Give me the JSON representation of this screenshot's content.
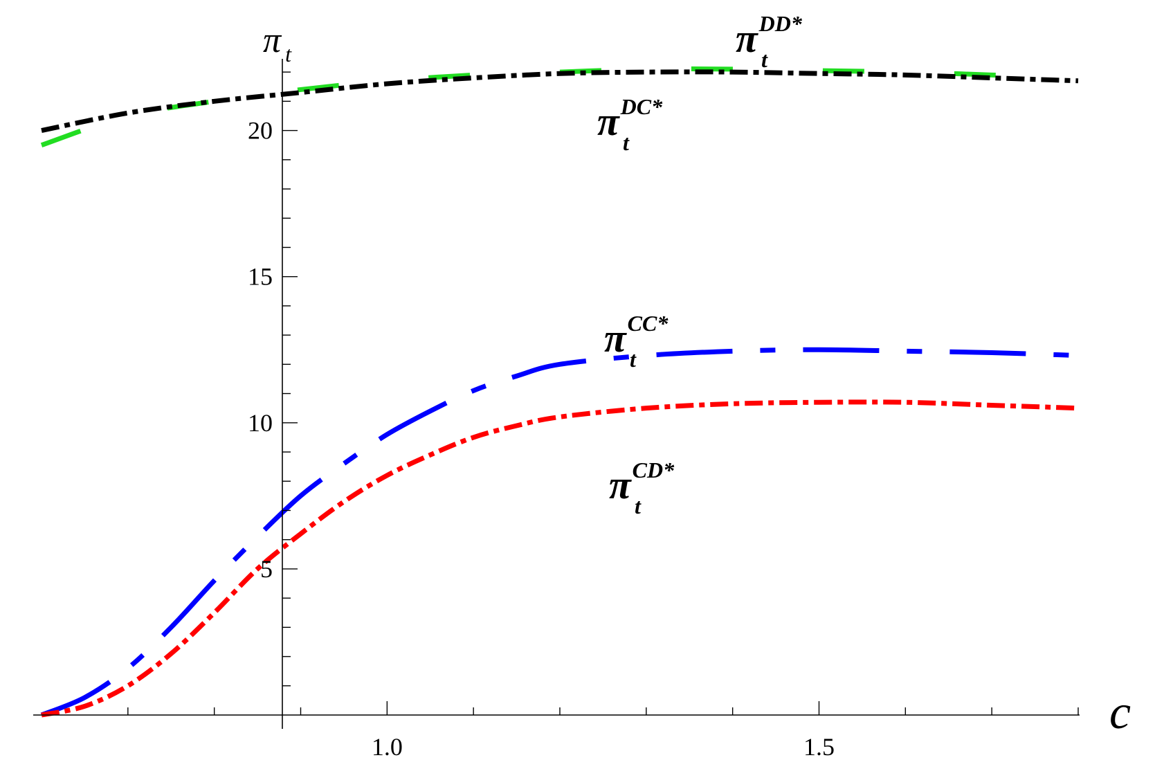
{
  "chart_data": {
    "type": "line",
    "xlabel": "c",
    "ylabel": "π",
    "ylabel_sub": "t",
    "xlim": [
      0.6,
      1.8
    ],
    "ylim": [
      0,
      22.5
    ],
    "x_ticks": [
      1.0,
      1.5
    ],
    "x_tick_labels": [
      "1.0",
      "1.5"
    ],
    "y_ticks": [
      5,
      10,
      15,
      20
    ],
    "y_tick_labels": [
      "5",
      "10",
      "15",
      "20"
    ],
    "grid": false,
    "series": [
      {
        "name": "DD*",
        "color": "#22dd22",
        "style": "long-dash",
        "x": [
          0.6,
          0.7,
          0.8,
          0.9,
          1.0,
          1.1,
          1.2,
          1.3,
          1.4,
          1.5,
          1.6,
          1.7,
          1.8
        ],
        "y": [
          19.5,
          20.5,
          21.0,
          21.4,
          21.7,
          21.9,
          22.0,
          22.1,
          22.1,
          22.05,
          22.0,
          21.9,
          21.8
        ]
      },
      {
        "name": "DC*",
        "color": "#000000",
        "style": "dash-dot",
        "x": [
          0.6,
          0.7,
          0.8,
          0.9,
          1.0,
          1.1,
          1.2,
          1.3,
          1.4,
          1.5,
          1.6,
          1.7,
          1.8
        ],
        "y": [
          20.0,
          20.6,
          21.0,
          21.3,
          21.6,
          21.8,
          21.95,
          22.0,
          22.0,
          21.95,
          21.9,
          21.8,
          21.7
        ]
      },
      {
        "name": "CC*",
        "color": "#0000ff",
        "style": "long-dash-dot",
        "x": [
          0.6,
          0.65,
          0.7,
          0.75,
          0.8,
          0.85,
          0.9,
          0.95,
          1.0,
          1.05,
          1.1,
          1.15,
          1.2,
          1.3,
          1.4,
          1.5,
          1.6,
          1.7,
          1.8
        ],
        "y": [
          0.0,
          0.6,
          1.6,
          3.0,
          4.6,
          6.1,
          7.5,
          8.6,
          9.6,
          10.4,
          11.1,
          11.6,
          12.0,
          12.3,
          12.45,
          12.5,
          12.45,
          12.4,
          12.3
        ]
      },
      {
        "name": "CD*",
        "color": "#ff0000",
        "style": "dash-dot",
        "x": [
          0.6,
          0.65,
          0.7,
          0.75,
          0.8,
          0.85,
          0.9,
          0.95,
          1.0,
          1.05,
          1.1,
          1.15,
          1.2,
          1.3,
          1.4,
          1.5,
          1.6,
          1.7,
          1.8
        ],
        "y": [
          0.0,
          0.3,
          1.0,
          2.1,
          3.5,
          5.0,
          6.2,
          7.3,
          8.2,
          8.9,
          9.5,
          9.9,
          10.2,
          10.5,
          10.65,
          10.7,
          10.7,
          10.6,
          10.5
        ]
      }
    ],
    "labels": [
      {
        "base": "π",
        "sub": "t",
        "sup": "DD*"
      },
      {
        "base": "π",
        "sub": "t",
        "sup": "DC*"
      },
      {
        "base": "π",
        "sub": "t",
        "sup": "CC*"
      },
      {
        "base": "π",
        "sub": "t",
        "sup": "CD*"
      }
    ]
  }
}
